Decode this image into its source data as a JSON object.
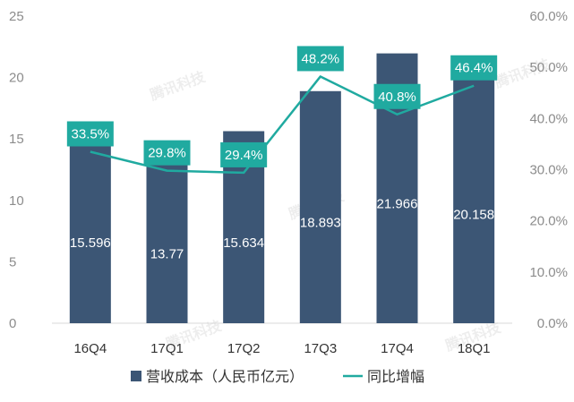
{
  "chart_data": {
    "type": "bar",
    "categories": [
      "16Q4",
      "17Q1",
      "17Q2",
      "17Q3",
      "17Q4",
      "18Q1"
    ],
    "series": [
      {
        "name": "营收成本（人民币亿元）",
        "kind": "bar",
        "axis": "left",
        "values": [
          15.596,
          13.77,
          15.634,
          18.893,
          21.966,
          20.158
        ],
        "labels": [
          "15.596",
          "13.77",
          "15.634",
          "18.893",
          "21.966",
          "20.158"
        ],
        "color": "#3c5675"
      },
      {
        "name": "同比增幅",
        "kind": "line",
        "axis": "right",
        "values": [
          33.5,
          29.8,
          29.4,
          48.2,
          40.8,
          46.4
        ],
        "labels": [
          "33.5%",
          "29.8%",
          "29.4%",
          "48.2%",
          "40.8%",
          "46.4%"
        ],
        "color": "#20aaa0"
      }
    ],
    "y_left": {
      "ylim": [
        0,
        25
      ],
      "ticks": [
        "0",
        "5",
        "10",
        "15",
        "20",
        "25"
      ]
    },
    "y_right": {
      "ylim": [
        0,
        60
      ],
      "ticks": [
        "0.0%",
        "10.0%",
        "20.0%",
        "30.0%",
        "40.0%",
        "50.0%",
        "60.0%"
      ]
    },
    "grid": false,
    "legend_position": "bottom",
    "legend": [
      {
        "label": "营收成本（人民币亿元）",
        "marker": "square",
        "color": "#3c5675"
      },
      {
        "label": "同比增幅",
        "marker": "line",
        "color": "#20aaa0"
      }
    ],
    "watermark": "腾讯科技"
  }
}
